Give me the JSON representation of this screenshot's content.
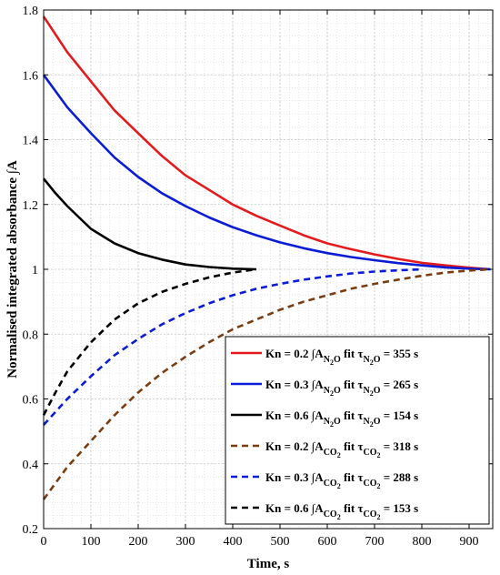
{
  "chart_data": {
    "type": "line",
    "xlabel": "Time, s",
    "ylabel": "Normalised integrated absorbance ∫A",
    "xlim": [
      0,
      950
    ],
    "ylim": [
      0.2,
      1.8
    ],
    "x_ticks": [
      0,
      100,
      200,
      300,
      400,
      500,
      600,
      700,
      800,
      900
    ],
    "y_ticks": [
      0.2,
      0.4,
      0.6,
      0.8,
      1.0,
      1.2,
      1.4,
      1.6,
      1.8
    ],
    "x_tick_labels": [
      "0",
      "100",
      "200",
      "300",
      "400",
      "500",
      "600",
      "700",
      "800",
      "900"
    ],
    "y_tick_labels": [
      "0.2",
      "0.4",
      "0.6",
      "0.8",
      "1",
      "1.2",
      "1.4",
      "1.6",
      "1.8"
    ],
    "grid": true,
    "minor_grid": true,
    "legend_position": "bottom-right",
    "series": [
      {
        "legend": {
          "kn": "Kn = 0.2",
          "species": "N",
          "sub1": "2",
          "species2": "O",
          "tau": "355 s"
        },
        "color": "#e41a1c",
        "dash": "solid",
        "x": [
          0,
          50,
          100,
          150,
          200,
          250,
          300,
          350,
          400,
          450,
          500,
          550,
          600,
          650,
          700,
          750,
          800,
          850,
          900,
          945
        ],
        "y": [
          1.78,
          1.67,
          1.58,
          1.49,
          1.42,
          1.35,
          1.29,
          1.245,
          1.2,
          1.165,
          1.135,
          1.105,
          1.08,
          1.062,
          1.046,
          1.032,
          1.02,
          1.012,
          1.005,
          1.0
        ]
      },
      {
        "legend": {
          "kn": "Kn = 0.3",
          "species": "N",
          "sub1": "2",
          "species2": "O",
          "tau": "265 s"
        },
        "color": "#0a1cd6",
        "dash": "solid",
        "x": [
          0,
          50,
          100,
          150,
          200,
          250,
          300,
          350,
          400,
          450,
          500,
          550,
          600,
          650,
          700,
          750,
          800,
          850,
          900,
          945
        ],
        "y": [
          1.6,
          1.5,
          1.42,
          1.345,
          1.285,
          1.235,
          1.195,
          1.16,
          1.13,
          1.105,
          1.083,
          1.065,
          1.05,
          1.038,
          1.028,
          1.019,
          1.012,
          1.006,
          1.002,
          1.0
        ]
      },
      {
        "legend": {
          "kn": "Kn = 0.6",
          "species": "N",
          "sub1": "2",
          "species2": "O",
          "tau": "154 s"
        },
        "color": "#000000",
        "dash": "solid",
        "x": [
          0,
          25,
          50,
          100,
          150,
          200,
          250,
          300,
          350,
          400,
          450
        ],
        "y": [
          1.28,
          1.235,
          1.195,
          1.125,
          1.08,
          1.05,
          1.03,
          1.015,
          1.007,
          1.002,
          1.0
        ]
      },
      {
        "legend": {
          "kn": "Kn = 0.2",
          "species": "CO",
          "sub1": "2",
          "species2": "",
          "tau": "318 s"
        },
        "color": "#7a3d12",
        "dash": "dashed",
        "x": [
          0,
          50,
          100,
          150,
          200,
          250,
          300,
          350,
          400,
          450,
          500,
          550,
          600,
          650,
          700,
          750,
          800,
          850,
          900,
          945
        ],
        "y": [
          0.29,
          0.39,
          0.47,
          0.55,
          0.62,
          0.68,
          0.73,
          0.775,
          0.815,
          0.845,
          0.875,
          0.9,
          0.92,
          0.94,
          0.955,
          0.968,
          0.98,
          0.99,
          0.996,
          1.0
        ]
      },
      {
        "legend": {
          "kn": "Kn = 0.3",
          "species": "CO",
          "sub1": "2",
          "species2": "",
          "tau": "288 s"
        },
        "color": "#0a1cd6",
        "dash": "dashed",
        "x": [
          0,
          50,
          100,
          150,
          200,
          250,
          300,
          350,
          400,
          450,
          500,
          550,
          600,
          650,
          700,
          750,
          800
        ],
        "y": [
          0.52,
          0.6,
          0.67,
          0.735,
          0.785,
          0.83,
          0.865,
          0.895,
          0.92,
          0.94,
          0.955,
          0.968,
          0.978,
          0.987,
          0.993,
          0.997,
          1.0
        ]
      },
      {
        "legend": {
          "kn": "Kn = 0.6",
          "species": "CO",
          "sub1": "2",
          "species2": "",
          "tau": "153 s"
        },
        "color": "#000000",
        "dash": "dashed",
        "x": [
          0,
          25,
          50,
          100,
          150,
          200,
          250,
          300,
          350,
          400,
          450
        ],
        "y": [
          0.55,
          0.62,
          0.685,
          0.775,
          0.845,
          0.895,
          0.93,
          0.955,
          0.975,
          0.99,
          1.0
        ]
      }
    ]
  }
}
